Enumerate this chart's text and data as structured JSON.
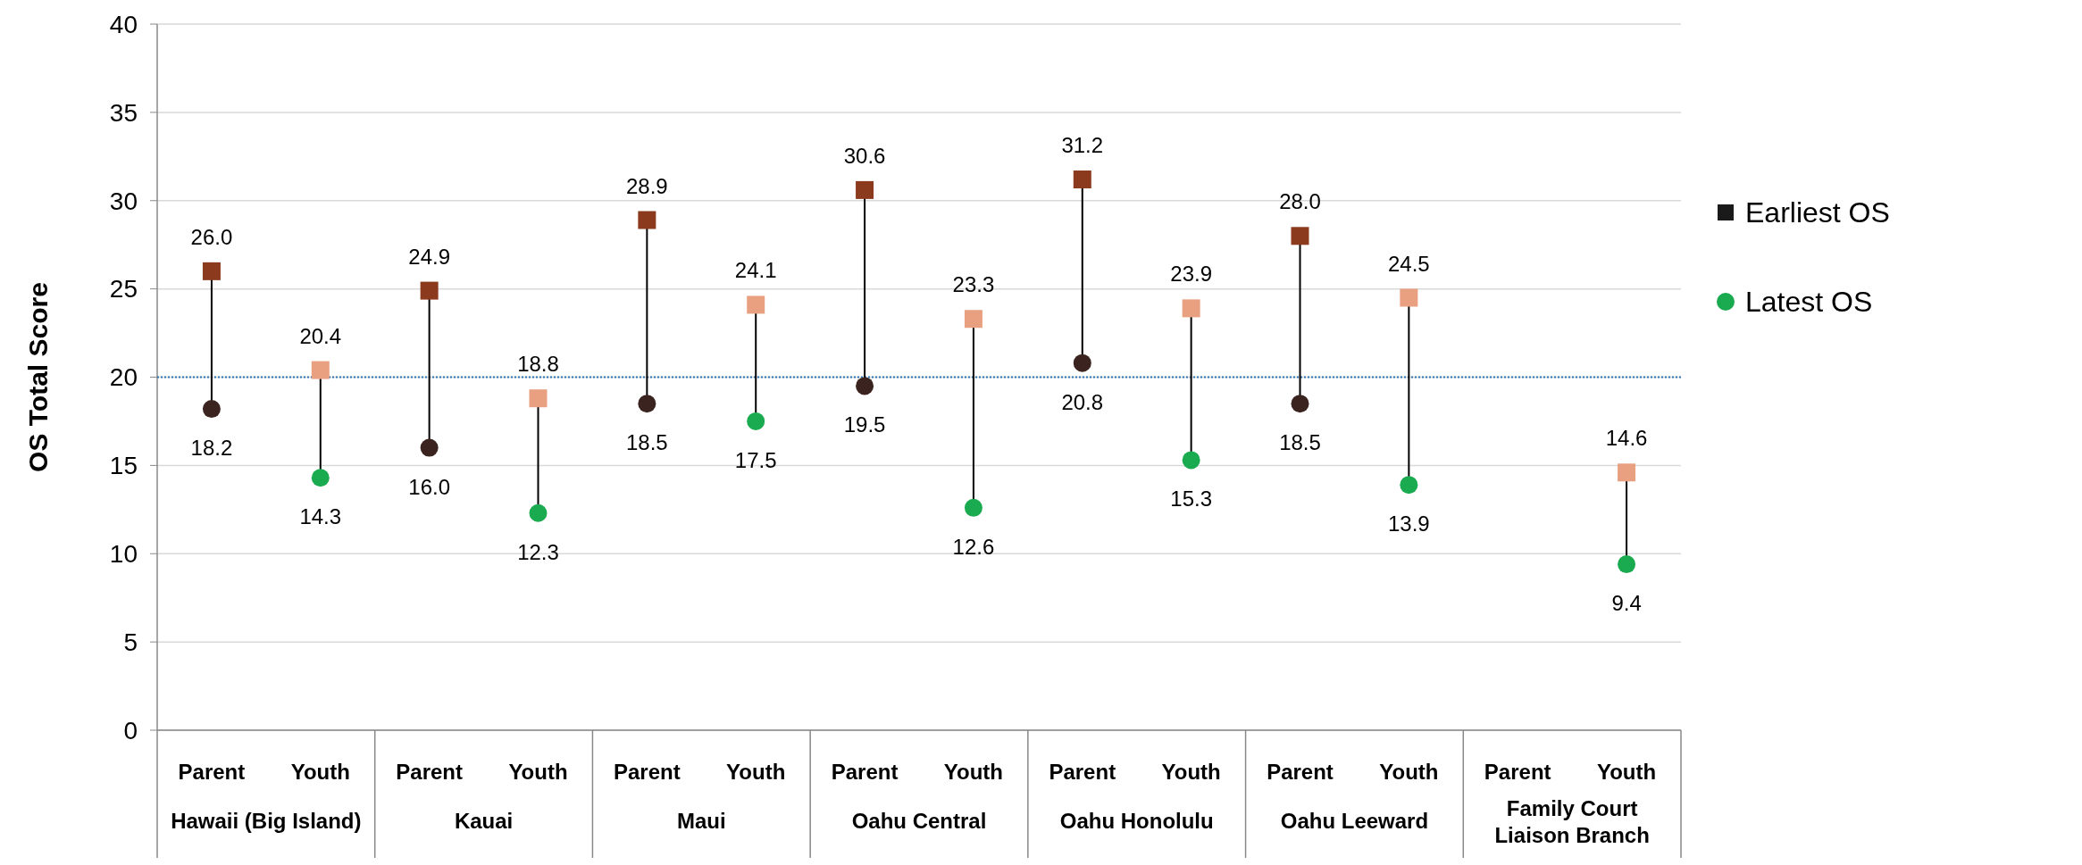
{
  "chart_data": {
    "type": "scatter",
    "ylabel": "OS Total Score",
    "categories": [
      "Parent",
      "Youth",
      "Parent",
      "Youth",
      "Parent",
      "Youth",
      "Parent",
      "Youth",
      "Parent",
      "Youth",
      "Parent",
      "Youth",
      "Parent",
      "Youth"
    ],
    "annotations": [
      "Hawaii (Big Island)",
      "Kauai",
      "Maui",
      "Oahu Central",
      "Oahu Honolulu",
      "Oahu Leeward",
      "Family Court Liaison Branch"
    ],
    "series": [
      {
        "name": "Earliest OS",
        "color": "#1a1a1a",
        "marker": "square",
        "values": [
          26.0,
          20.4,
          24.9,
          18.8,
          28.9,
          24.1,
          30.6,
          23.3,
          31.2,
          23.9,
          28.0,
          24.5,
          null,
          14.6
        ],
        "colors": [
          "#8b3a1e",
          "#e8a080",
          "#8b3a1e",
          "#e8a080",
          "#8b3a1e",
          "#e8a080",
          "#8b3a1e",
          "#e8a080",
          "#8b3a1e",
          "#e8a080",
          "#8b3a1e",
          "#e8a080",
          null,
          "#e8a080"
        ],
        "value_labels": [
          "26.0",
          "20.4",
          "24.9",
          "18.8",
          "28.9",
          "24.1",
          "30.6",
          "23.3",
          "31.2",
          "23.9",
          "28.0",
          "24.5",
          null,
          "14.6"
        ]
      },
      {
        "name": "Latest OS",
        "color": "#1aaa50",
        "marker": "circle",
        "values": [
          18.2,
          14.3,
          16.0,
          12.3,
          18.5,
          17.5,
          19.5,
          12.6,
          20.8,
          15.3,
          18.5,
          13.9,
          null,
          9.4
        ],
        "colors": [
          "#3b2420",
          "#1aaa50",
          "#3b2420",
          "#1aaa50",
          "#3b2420",
          "#1aaa50",
          "#3b2420",
          "#1aaa50",
          "#3b2420",
          "#1aaa50",
          "#3b2420",
          "#1aaa50",
          null,
          "#1aaa50"
        ],
        "value_labels": [
          "18.2",
          "14.3",
          "16.0",
          "12.3",
          "18.5",
          "17.5",
          "19.5",
          "12.6",
          "20.8",
          "15.3",
          "18.5",
          "13.9",
          null,
          "9.4"
        ]
      }
    ],
    "ylim": [
      0,
      40
    ],
    "yticks": [
      0,
      5,
      10,
      15,
      20,
      25,
      30,
      35,
      40
    ],
    "grid": "y",
    "legend": "right",
    "ref_lines": [
      {
        "axis": "y",
        "value": 20,
        "color": "#2e75b6",
        "line_style": "dotted"
      }
    ]
  }
}
